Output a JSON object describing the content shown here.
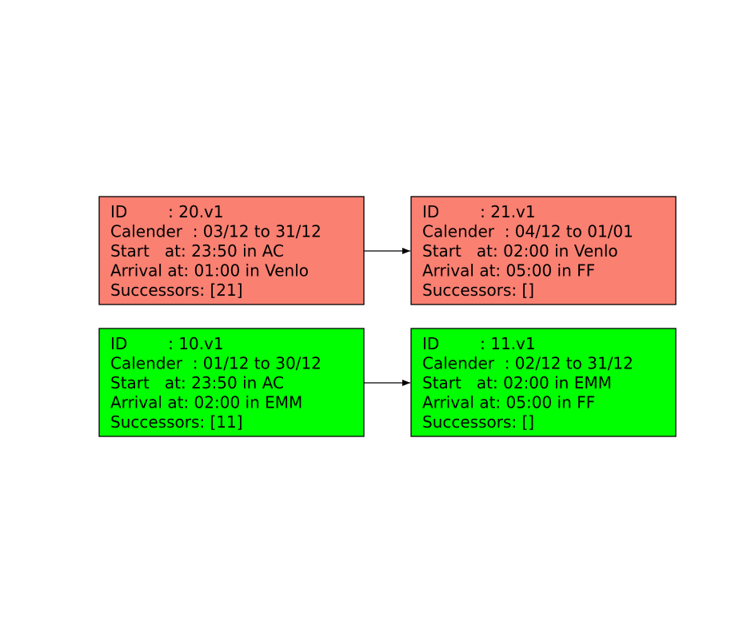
{
  "nodes": [
    {
      "color": "#fa8072",
      "lines": [
        "ID        : 20.v1",
        "Calender  : 03/12 to 31/12",
        "Start   at: 23:50 in AC",
        "Arrival at: 01:00 in Venlo",
        "Successors: [21]"
      ]
    },
    {
      "color": "#fa8072",
      "lines": [
        "ID        : 21.v1",
        "Calender  : 04/12 to 01/01",
        "Start   at: 02:00 in Venlo",
        "Arrival at: 05:00 in FF",
        "Successors: []"
      ]
    },
    {
      "color": "#00ff00",
      "lines": [
        "ID        : 10.v1",
        "Calender  : 01/12 to 30/12",
        "Start   at: 23:50 in AC",
        "Arrival at: 02:00 in EMM",
        "Successors: [11]"
      ]
    },
    {
      "color": "#00ff00",
      "lines": [
        "ID        : 11.v1",
        "Calender  : 02/12 to 31/12",
        "Start   at: 02:00 in EMM",
        "Arrival at: 05:00 in FF",
        "Successors: []"
      ]
    }
  ]
}
